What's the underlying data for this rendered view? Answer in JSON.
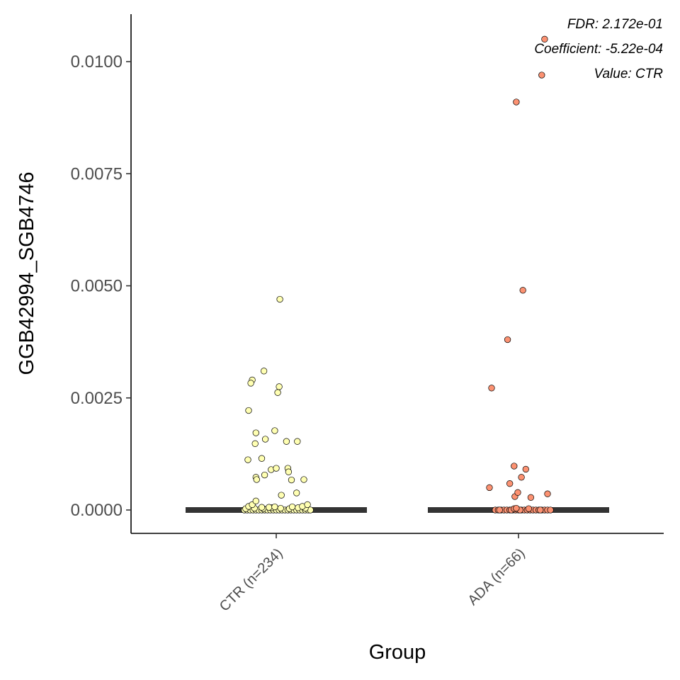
{
  "chart_data": {
    "type": "scatter",
    "xlabel": "Group",
    "ylabel": "GGB42994_SGB4746",
    "ylim": [
      -0.0005,
      0.0105
    ],
    "yticks": [
      0.0,
      0.0025,
      0.005,
      0.0075,
      0.01
    ],
    "ytick_labels": [
      "0.0000",
      "0.0025",
      "0.0050",
      "0.0075",
      "0.0100"
    ],
    "categories": [
      "CTR (n=234)",
      "ADA (n=66)"
    ],
    "annotations": [
      "FDR: 2.172e-01",
      "Coefficient: -5.22e-04",
      "Value: CTR"
    ],
    "grid": false,
    "legend": "none",
    "medians": [
      0.0,
      0.0
    ],
    "series": [
      {
        "color": "#FFFFB2",
        "points": [
          [
            -0.44,
            0.0
          ],
          [
            -0.4,
            0.0
          ],
          [
            -0.36,
            0.0
          ],
          [
            -0.32,
            0.0
          ],
          [
            -0.28,
            0.0
          ],
          [
            -0.24,
            0.0
          ],
          [
            -0.2,
            0.0
          ],
          [
            -0.16,
            0.0
          ],
          [
            -0.12,
            0.0
          ],
          [
            -0.08,
            0.0
          ],
          [
            -0.04,
            0.0
          ],
          [
            0.0,
            0.0
          ],
          [
            0.04,
            0.0
          ],
          [
            0.08,
            0.0
          ],
          [
            0.12,
            0.0
          ],
          [
            0.16,
            0.0
          ],
          [
            0.2,
            0.0
          ],
          [
            0.24,
            0.0
          ],
          [
            0.28,
            0.0
          ],
          [
            0.32,
            0.0
          ],
          [
            0.36,
            0.0
          ],
          [
            0.4,
            0.0
          ],
          [
            0.44,
            0.0
          ],
          [
            0.47,
            0.0
          ],
          [
            -0.42,
            3e-05
          ],
          [
            -0.3,
            4e-05
          ],
          [
            -0.18,
            3e-05
          ],
          [
            -0.06,
            5e-05
          ],
          [
            0.06,
            4e-05
          ],
          [
            0.18,
            3e-05
          ],
          [
            0.3,
            5e-05
          ],
          [
            0.4,
            4e-05
          ],
          [
            -0.38,
            8e-05
          ],
          [
            -0.1,
            6e-05
          ],
          [
            0.22,
            7e-05
          ],
          [
            0.36,
            8e-05
          ],
          [
            -0.2,
            6e-05
          ],
          [
            -0.33,
            0.00012
          ],
          [
            -0.28,
            0.0002
          ],
          [
            -0.02,
            7e-05
          ],
          [
            0.43,
            0.00012
          ],
          [
            0.05,
            0.0047
          ],
          [
            -0.17,
            0.0031
          ],
          [
            -0.33,
            0.0029
          ],
          [
            -0.35,
            0.00283
          ],
          [
            0.04,
            0.00275
          ],
          [
            0.02,
            0.00262
          ],
          [
            -0.38,
            0.00222
          ],
          [
            -0.28,
            0.00172
          ],
          [
            -0.29,
            0.00148
          ],
          [
            -0.15,
            0.00158
          ],
          [
            -0.02,
            0.00177
          ],
          [
            0.14,
            0.00153
          ],
          [
            0.29,
            0.00153
          ],
          [
            -0.2,
            0.00115
          ],
          [
            -0.39,
            0.00112
          ],
          [
            -0.07,
            0.0009
          ],
          [
            0.0,
            0.00093
          ],
          [
            0.16,
            0.00093
          ],
          [
            0.17,
            0.00085
          ],
          [
            -0.16,
            0.00078
          ],
          [
            -0.28,
            0.00073
          ],
          [
            -0.27,
            0.00068
          ],
          [
            0.38,
            0.00068
          ],
          [
            0.21,
            0.00067
          ],
          [
            0.28,
            0.00038
          ],
          [
            0.07,
            0.00033
          ]
        ]
      },
      {
        "color": "#FC9272",
        "points": [
          [
            -0.32,
            0.0
          ],
          [
            -0.28,
            0.0
          ],
          [
            -0.24,
            0.0
          ],
          [
            -0.2,
            0.0
          ],
          [
            -0.16,
            0.0
          ],
          [
            -0.12,
            0.0
          ],
          [
            -0.08,
            0.0
          ],
          [
            -0.04,
            0.0
          ],
          [
            0.0,
            0.0
          ],
          [
            0.04,
            0.0
          ],
          [
            0.08,
            0.0
          ],
          [
            0.12,
            0.0
          ],
          [
            0.16,
            0.0
          ],
          [
            0.2,
            0.0
          ],
          [
            0.24,
            0.0
          ],
          [
            0.28,
            0.0
          ],
          [
            0.32,
            0.0
          ],
          [
            0.36,
            0.0
          ],
          [
            0.4,
            0.0
          ],
          [
            0.44,
            0.0
          ],
          [
            -0.26,
            0.0
          ],
          [
            0.02,
            0.0
          ],
          [
            0.3,
            0.0
          ],
          [
            -0.1,
            0.0
          ],
          [
            -0.06,
            3e-05
          ],
          [
            0.14,
            3e-05
          ],
          [
            -0.03,
            4e-05
          ],
          [
            -0.05,
            0.0003
          ],
          [
            0.36,
            0.0105
          ],
          [
            0.32,
            0.0097
          ],
          [
            -0.03,
            0.0091
          ],
          [
            0.06,
            0.0049
          ],
          [
            -0.15,
            0.0038
          ],
          [
            -0.37,
            0.00272
          ],
          [
            -0.06,
            0.00098
          ],
          [
            0.1,
            0.00091
          ],
          [
            0.04,
            0.00073
          ],
          [
            -0.12,
            0.00059
          ],
          [
            -0.4,
            0.0005
          ],
          [
            -0.01,
            0.00039
          ],
          [
            0.4,
            0.00036
          ],
          [
            0.17,
            0.00028
          ]
        ]
      }
    ]
  }
}
